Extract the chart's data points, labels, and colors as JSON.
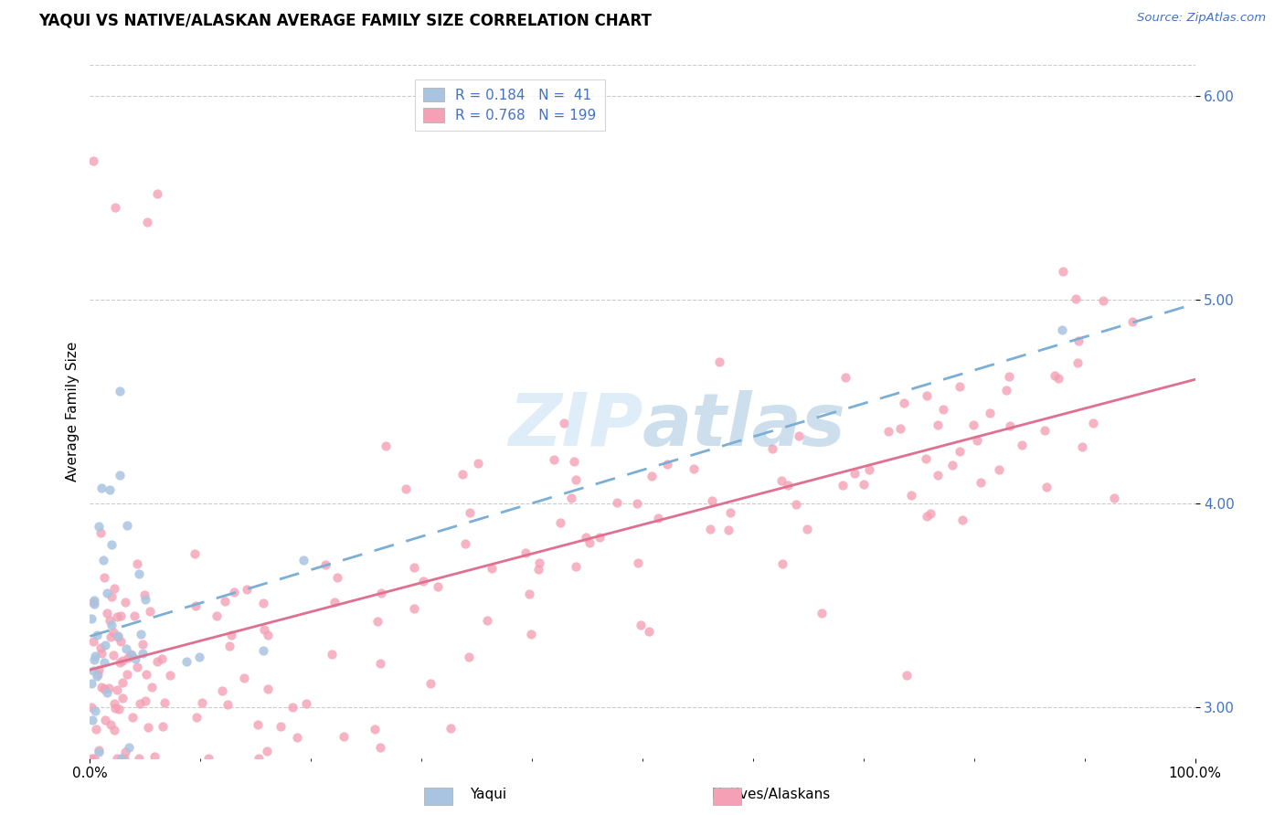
{
  "title": "YAQUI VS NATIVE/ALASKAN AVERAGE FAMILY SIZE CORRELATION CHART",
  "source_text": "Source: ZipAtlas.com",
  "ylabel": "Average Family Size",
  "xmin": 0.0,
  "xmax": 1.0,
  "ymin": 2.75,
  "ymax": 6.15,
  "yticks": [
    3.0,
    4.0,
    5.0,
    6.0
  ],
  "color_yaqui": "#a8c4e0",
  "color_native": "#f4a0b5",
  "color_yaqui_line": "#7bafd4",
  "color_native_line": "#e07090",
  "color_legend_text": "#4472c4",
  "background_color": "#ffffff",
  "grid_color": "#cccccc",
  "yaqui_R": 0.184,
  "yaqui_N": 41,
  "native_R": 0.768,
  "native_N": 199
}
